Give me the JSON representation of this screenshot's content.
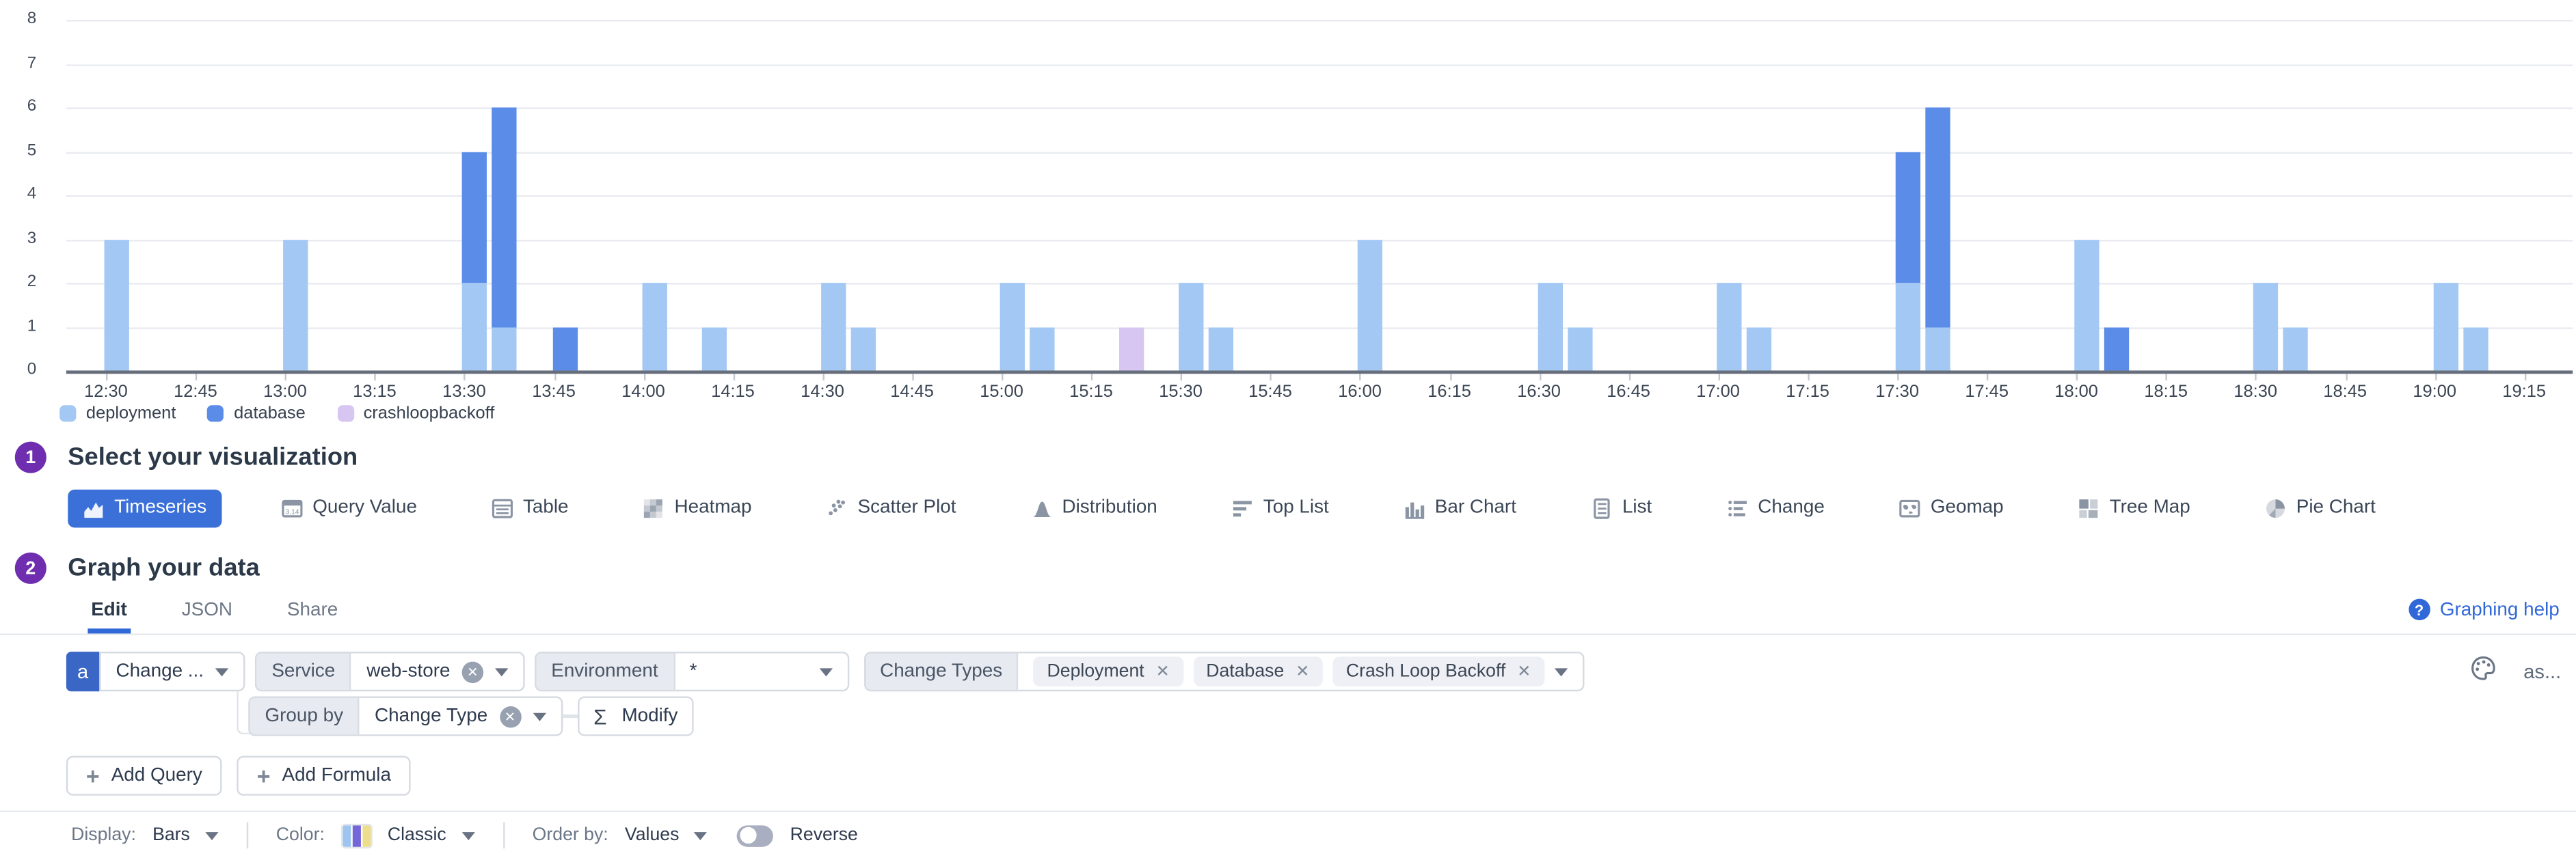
{
  "chart_data": {
    "type": "bar",
    "stacked": true,
    "title": "",
    "xlabel": "",
    "ylabel": "",
    "ylim": [
      0,
      8
    ],
    "y_ticks": [
      0,
      1,
      2,
      3,
      4,
      5,
      6,
      7,
      8
    ],
    "grid": "horizontal",
    "legend_position": "bottom-left",
    "x_tick_interval_min": 15,
    "bar_bucket_min": 5,
    "x_ticks": [
      "12:30",
      "12:45",
      "13:00",
      "13:15",
      "13:30",
      "13:45",
      "14:00",
      "14:15",
      "14:30",
      "14:45",
      "15:00",
      "15:15",
      "15:30",
      "15:45",
      "16:00",
      "16:15",
      "16:30",
      "16:45",
      "17:00",
      "17:15",
      "17:30",
      "17:45",
      "18:00",
      "18:15",
      "18:30",
      "18:45",
      "19:00",
      "19:15"
    ],
    "series": [
      {
        "name": "deployment",
        "color": "#a4c8f4",
        "points": [
          [
            "12:30",
            3
          ],
          [
            "13:00",
            3
          ],
          [
            "13:30",
            2
          ],
          [
            "13:35",
            1
          ],
          [
            "14:00",
            2
          ],
          [
            "14:10",
            1
          ],
          [
            "14:30",
            2
          ],
          [
            "14:35",
            1
          ],
          [
            "15:00",
            2
          ],
          [
            "15:05",
            1
          ],
          [
            "15:30",
            2
          ],
          [
            "15:35",
            1
          ],
          [
            "16:00",
            3
          ],
          [
            "16:30",
            2
          ],
          [
            "16:35",
            1
          ],
          [
            "17:00",
            2
          ],
          [
            "17:05",
            1
          ],
          [
            "17:30",
            2
          ],
          [
            "17:35",
            1
          ],
          [
            "18:00",
            3
          ],
          [
            "18:30",
            2
          ],
          [
            "18:35",
            1
          ],
          [
            "19:00",
            2
          ],
          [
            "19:05",
            1
          ]
        ]
      },
      {
        "name": "database",
        "color": "#5a8ce8",
        "points": [
          [
            "13:30",
            3
          ],
          [
            "13:35",
            5
          ],
          [
            "13:45",
            1
          ],
          [
            "17:30",
            3
          ],
          [
            "17:35",
            5
          ],
          [
            "18:05",
            1
          ]
        ]
      },
      {
        "name": "crashloopbackoff",
        "color": "#d7c5f2",
        "points": [
          [
            "15:20",
            1
          ]
        ]
      }
    ]
  },
  "sections": {
    "visualization": {
      "number": "1",
      "title": "Select your visualization"
    },
    "graph": {
      "number": "2",
      "title": "Graph your data"
    }
  },
  "visualizations": {
    "selected": "Timeseries",
    "options": [
      {
        "label": "Timeseries",
        "icon": "timeseries-icon"
      },
      {
        "label": "Query Value",
        "icon": "query-value-icon"
      },
      {
        "label": "Table",
        "icon": "table-icon"
      },
      {
        "label": "Heatmap",
        "icon": "heatmap-icon"
      },
      {
        "label": "Scatter Plot",
        "icon": "scatter-plot-icon"
      },
      {
        "label": "Distribution",
        "icon": "distribution-icon"
      },
      {
        "label": "Top List",
        "icon": "top-list-icon"
      },
      {
        "label": "Bar Chart",
        "icon": "bar-chart-icon"
      },
      {
        "label": "List",
        "icon": "list-icon"
      },
      {
        "label": "Change",
        "icon": "change-icon"
      },
      {
        "label": "Geomap",
        "icon": "geomap-icon"
      },
      {
        "label": "Tree Map",
        "icon": "tree-map-icon"
      },
      {
        "label": "Pie Chart",
        "icon": "pie-chart-icon"
      }
    ]
  },
  "tabs": {
    "edit": "Edit",
    "json": "JSON",
    "share": "Share",
    "help": "Graphing help"
  },
  "query": {
    "letter": "a",
    "metric": "Change ...",
    "service_label": "Service",
    "service_value": "web-store",
    "environment_label": "Environment",
    "environment_value": "*",
    "change_types_label": "Change Types",
    "change_types": [
      "Deployment",
      "Database",
      "Crash Loop Backoff"
    ],
    "group_by_label": "Group by",
    "group_by_value": "Change Type",
    "sigma": "Σ",
    "modify": "Modify",
    "as": "as..."
  },
  "actions": {
    "add_query": "Add Query",
    "add_formula": "Add Formula"
  },
  "display": {
    "display_label": "Display:",
    "display_value": "Bars",
    "color_label": "Color:",
    "color_value": "Classic",
    "order_label": "Order by:",
    "order_value": "Values",
    "reverse_label": "Reverse",
    "reverse_on": false
  },
  "colors": {
    "accent": "#3b70d8",
    "badge_purple": "#6f2daf",
    "link_blue": "#3168d8",
    "deployment": "#a4c8f4",
    "database": "#5a8ce8",
    "crashloopbackoff": "#d7c5f2",
    "palette_classic": [
      "#9ec4f0",
      "#7465d8",
      "#ecde8c"
    ]
  }
}
